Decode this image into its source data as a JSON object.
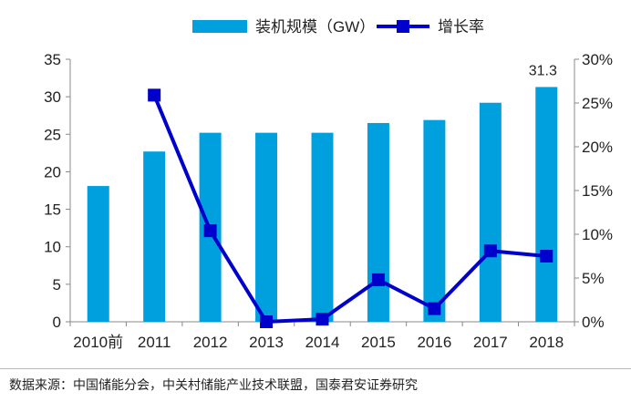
{
  "chart_data": {
    "type": "bar+line",
    "categories": [
      "2010前",
      "2011",
      "2012",
      "2013",
      "2014",
      "2015",
      "2016",
      "2017",
      "2018"
    ],
    "series": [
      {
        "name": "装机规模（GW）",
        "axis": "left",
        "type": "bar",
        "color": "#00A0DE",
        "values": [
          18.1,
          22.7,
          25.2,
          25.2,
          25.2,
          26.5,
          26.9,
          29.2,
          31.3
        ]
      },
      {
        "name": "增长率",
        "axis": "right",
        "type": "line",
        "color": "#0000CC",
        "values": [
          null,
          25.9,
          10.4,
          0.0,
          0.3,
          4.8,
          1.5,
          8.1,
          7.5
        ]
      }
    ],
    "left_axis": {
      "ylim": [
        0,
        35
      ],
      "ticks": [
        "0",
        "5",
        "10",
        "15",
        "20",
        "25",
        "30",
        "35"
      ]
    },
    "right_axis": {
      "ylim": [
        0,
        30
      ],
      "ticks": [
        "0%",
        "5%",
        "10%",
        "15%",
        "20%",
        "25%",
        "30%"
      ]
    },
    "data_labels": [
      {
        "category": "2018",
        "text": "31.3"
      }
    ],
    "legend": "top"
  },
  "footer": {
    "source": "数据来源：中国储能分会，中关村储能产业技术联盟，国泰君安证券研究"
  }
}
